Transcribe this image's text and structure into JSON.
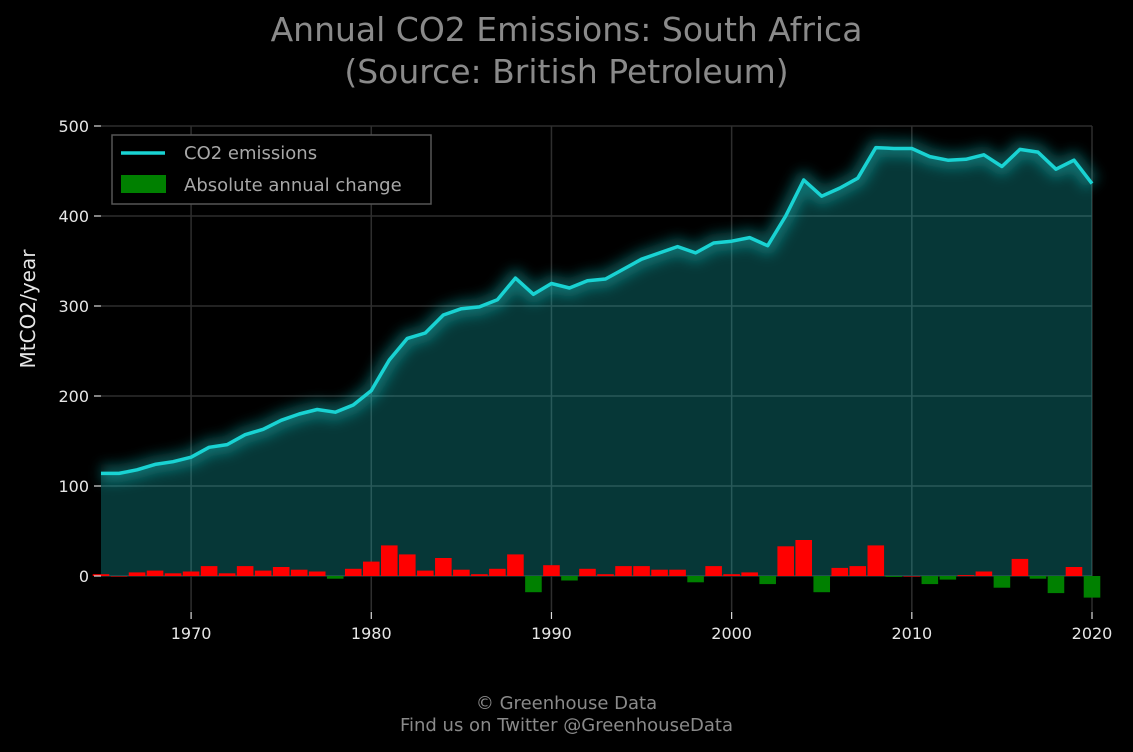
{
  "chart_data": {
    "type": "line",
    "title": "Annual CO2 Emissions: South Africa",
    "subtitle": "(Source: British Petroleum)",
    "ylabel": "MtCO2/year",
    "xlabel": "",
    "xlim": [
      1965,
      2020
    ],
    "ylim": [
      -40,
      500
    ],
    "x_ticks": [
      1970,
      1980,
      1990,
      2000,
      2010,
      2020
    ],
    "y_ticks": [
      0,
      100,
      200,
      300,
      400,
      500
    ],
    "grid": true,
    "legend_position": "top-left",
    "x": [
      1965,
      1966,
      1967,
      1968,
      1969,
      1970,
      1971,
      1972,
      1973,
      1974,
      1975,
      1976,
      1977,
      1978,
      1979,
      1980,
      1981,
      1982,
      1983,
      1984,
      1985,
      1986,
      1987,
      1988,
      1989,
      1990,
      1991,
      1992,
      1993,
      1994,
      1995,
      1996,
      1997,
      1998,
      1999,
      2000,
      2001,
      2002,
      2003,
      2004,
      2005,
      2006,
      2007,
      2008,
      2009,
      2010,
      2011,
      2012,
      2013,
      2014,
      2015,
      2016,
      2017,
      2018,
      2019,
      2020
    ],
    "series": [
      {
        "name": "CO2 emissions",
        "type": "line",
        "color": "#19d3d3",
        "values": [
          114,
          114,
          118,
          124,
          127,
          132,
          143,
          146,
          157,
          163,
          173,
          180,
          185,
          182,
          190,
          206,
          240,
          264,
          270,
          290,
          297,
          299,
          307,
          331,
          313,
          325,
          320,
          328,
          330,
          341,
          352,
          359,
          366,
          359,
          370,
          372,
          376,
          367,
          400,
          440,
          422,
          431,
          442,
          476,
          475,
          475,
          466,
          462,
          463,
          468,
          455,
          474,
          471,
          452,
          462,
          436
        ]
      },
      {
        "name": "Absolute annual change",
        "type": "bar",
        "color_positive": "#ff0000",
        "color_negative": "#008000",
        "values": [
          2,
          0,
          4,
          6,
          3,
          5,
          11,
          3,
          11,
          6,
          10,
          7,
          5,
          -3,
          8,
          16,
          34,
          24,
          6,
          20,
          7,
          2,
          8,
          24,
          -18,
          12,
          -5,
          8,
          2,
          11,
          11,
          7,
          7,
          -7,
          11,
          2,
          4,
          -9,
          33,
          40,
          -18,
          9,
          11,
          34,
          -1,
          0,
          -9,
          -4,
          1,
          5,
          -13,
          19,
          -3,
          -19,
          10,
          -24
        ]
      }
    ]
  },
  "footer": {
    "line1": "© Greenhouse Data",
    "line2": "Find us on Twitter @GreenhouseData"
  }
}
